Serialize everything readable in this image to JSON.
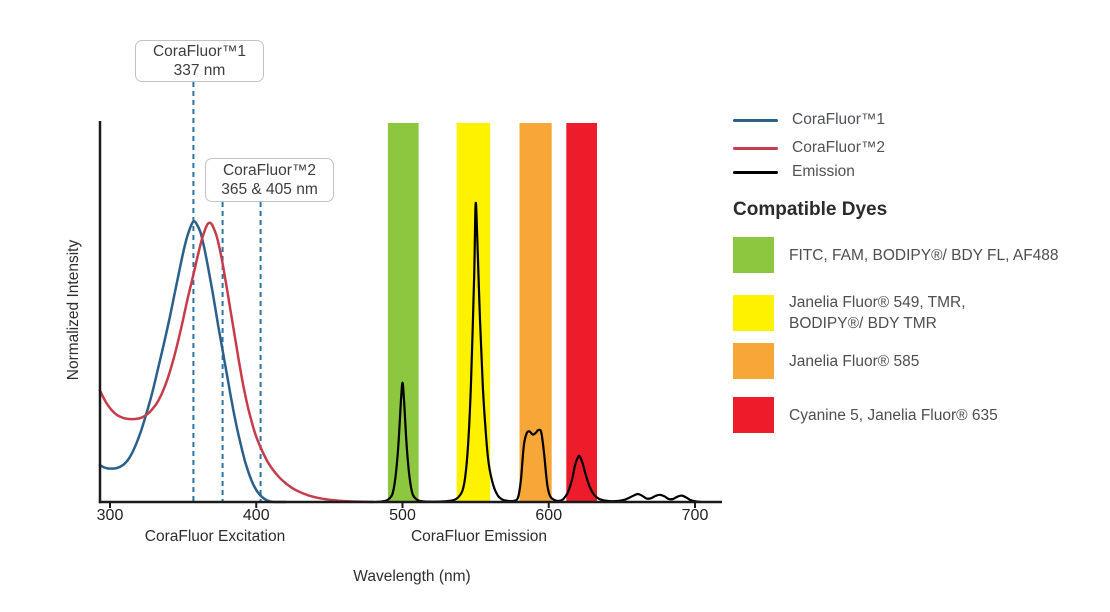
{
  "colors": {
    "corafluor1_blue": "#2B5F8C",
    "corafluor2_red": "#C63C4B",
    "emission_black": "#000000",
    "marker_dash_blue": "#2E74A4",
    "band_green": "#8DC63F",
    "band_yellow": "#FFF200",
    "band_orange": "#F7A738",
    "band_red": "#EC1C2B",
    "axis_black": "#1A1A1A"
  },
  "axes": {
    "x_label": "Wavelength (nm)",
    "y_label": "Normalized Intensity",
    "x_ticks": [
      {
        "label": "300",
        "nm": 300
      },
      {
        "label": "400",
        "nm": 400
      },
      {
        "label": "500",
        "nm": 500
      },
      {
        "label": "600",
        "nm": 600
      },
      {
        "label": "700",
        "nm": 700
      }
    ],
    "region_labels": [
      {
        "text": "CoraFluor Excitation",
        "center_nm": 372
      },
      {
        "text": "CoraFluor Emission",
        "center_nm": 552
      }
    ]
  },
  "callouts": [
    {
      "title": "CoraFluor™1",
      "subtitle": "337 nm",
      "lines_nm": [
        357
      ]
    },
    {
      "title": "CoraFluor™2",
      "subtitle": "365 & 405 nm",
      "lines_nm": [
        377,
        403
      ]
    }
  ],
  "legend": {
    "items": [
      {
        "label": "CoraFluor™1",
        "color": "#2B5F8C"
      },
      {
        "label": "CoraFluor™2",
        "color": "#C63C4B"
      },
      {
        "label": "Emission",
        "color": "#000000"
      }
    ]
  },
  "compatible_dyes": {
    "title": "Compatible Dyes",
    "items": [
      {
        "label": "FITC, FAM, BODIPY®/ BDY FL, AF488",
        "color": "#8DC63F"
      },
      {
        "label": "Janelia Fluor® 549, TMR,\nBODIPY®/ BDY TMR",
        "color": "#FFF200"
      },
      {
        "label": "Janelia Fluor® 585",
        "color": "#F7A738"
      },
      {
        "label": "Cyanine 5, Janelia Fluor® 635",
        "color": "#EC1C2B"
      }
    ]
  },
  "chart_data": {
    "type": "line",
    "title": "",
    "xlabel": "Wavelength (nm)",
    "ylabel": "Normalized Intensity",
    "xlim": [
      293,
      717
    ],
    "ylim": [
      0,
      1
    ],
    "grid": false,
    "legend_position": "right",
    "excitation_markers_nm": {
      "CoraFluor™1": [
        337
      ],
      "CoraFluor™2": [
        365,
        405
      ]
    },
    "series": [
      {
        "key": "corafluor1-excitation",
        "name": "CoraFluor™1",
        "color": "#2B5F8C",
        "width": 2.5,
        "points": [
          [
            293,
            0.097
          ],
          [
            297,
            0.09
          ],
          [
            301,
            0.088
          ],
          [
            305,
            0.09
          ],
          [
            309,
            0.098
          ],
          [
            313,
            0.115
          ],
          [
            317,
            0.145
          ],
          [
            321,
            0.185
          ],
          [
            325,
            0.235
          ],
          [
            329,
            0.29
          ],
          [
            333,
            0.355
          ],
          [
            337,
            0.42
          ],
          [
            341,
            0.49
          ],
          [
            345,
            0.565
          ],
          [
            349,
            0.64
          ],
          [
            352,
            0.69
          ],
          [
            355,
            0.725
          ],
          [
            357,
            0.74
          ],
          [
            359,
            0.735
          ],
          [
            362,
            0.71
          ],
          [
            365,
            0.66
          ],
          [
            368,
            0.6
          ],
          [
            371,
            0.535
          ],
          [
            374,
            0.465
          ],
          [
            377,
            0.4
          ],
          [
            380,
            0.335
          ],
          [
            383,
            0.27
          ],
          [
            386,
            0.21
          ],
          [
            389,
            0.158
          ],
          [
            392,
            0.112
          ],
          [
            395,
            0.075
          ],
          [
            398,
            0.046
          ],
          [
            401,
            0.026
          ],
          [
            404,
            0.013
          ],
          [
            407,
            0.005
          ],
          [
            410,
            0.001
          ],
          [
            414,
            0
          ],
          [
            420,
            0
          ]
        ]
      },
      {
        "key": "corafluor2-excitation",
        "name": "CoraFluor™2",
        "color": "#C63C4B",
        "width": 2.5,
        "points": [
          [
            293,
            0.295
          ],
          [
            297,
            0.265
          ],
          [
            301,
            0.243
          ],
          [
            305,
            0.229
          ],
          [
            309,
            0.222
          ],
          [
            313,
            0.219
          ],
          [
            317,
            0.219
          ],
          [
            321,
            0.222
          ],
          [
            325,
            0.23
          ],
          [
            329,
            0.245
          ],
          [
            333,
            0.267
          ],
          [
            337,
            0.3
          ],
          [
            341,
            0.345
          ],
          [
            345,
            0.4
          ],
          [
            349,
            0.465
          ],
          [
            353,
            0.535
          ],
          [
            357,
            0.6
          ],
          [
            360,
            0.65
          ],
          [
            363,
            0.695
          ],
          [
            366,
            0.728
          ],
          [
            368,
            0.737
          ],
          [
            370,
            0.73
          ],
          [
            373,
            0.7
          ],
          [
            376,
            0.65
          ],
          [
            379,
            0.585
          ],
          [
            382,
            0.515
          ],
          [
            385,
            0.445
          ],
          [
            388,
            0.375
          ],
          [
            391,
            0.31
          ],
          [
            394,
            0.255
          ],
          [
            397,
            0.21
          ],
          [
            400,
            0.172
          ],
          [
            404,
            0.135
          ],
          [
            408,
            0.105
          ],
          [
            412,
            0.082
          ],
          [
            416,
            0.064
          ],
          [
            420,
            0.05
          ],
          [
            425,
            0.036
          ],
          [
            430,
            0.026
          ],
          [
            436,
            0.017
          ],
          [
            442,
            0.011
          ],
          [
            448,
            0.007
          ],
          [
            455,
            0.004
          ],
          [
            462,
            0.002
          ],
          [
            470,
            0.001
          ],
          [
            480,
            0
          ]
        ]
      },
      {
        "key": "emission",
        "name": "Emission",
        "color": "#000000",
        "width": 2.2,
        "points": [
          [
            482,
            0
          ],
          [
            487,
            0.002
          ],
          [
            490,
            0.006
          ],
          [
            493,
            0.02
          ],
          [
            495,
            0.06
          ],
          [
            497,
            0.14
          ],
          [
            499,
            0.27
          ],
          [
            500,
            0.315
          ],
          [
            501,
            0.27
          ],
          [
            503,
            0.14
          ],
          [
            505,
            0.06
          ],
          [
            507,
            0.02
          ],
          [
            510,
            0.006
          ],
          [
            513,
            0.002
          ],
          [
            518,
            0.001
          ],
          [
            524,
            0.001
          ],
          [
            530,
            0.002
          ],
          [
            535,
            0.005
          ],
          [
            538,
            0.012
          ],
          [
            541,
            0.03
          ],
          [
            543,
            0.07
          ],
          [
            545,
            0.16
          ],
          [
            547,
            0.33
          ],
          [
            549,
            0.6
          ],
          [
            550,
            0.785
          ],
          [
            551,
            0.71
          ],
          [
            553,
            0.48
          ],
          [
            555,
            0.3
          ],
          [
            557,
            0.18
          ],
          [
            559,
            0.1
          ],
          [
            562,
            0.045
          ],
          [
            565,
            0.018
          ],
          [
            568,
            0.007
          ],
          [
            572,
            0.003
          ],
          [
            576,
            0.003
          ],
          [
            579,
            0.012
          ],
          [
            581,
            0.06
          ],
          [
            583,
            0.15
          ],
          [
            585,
            0.182
          ],
          [
            587,
            0.186
          ],
          [
            589,
            0.178
          ],
          [
            591,
            0.182
          ],
          [
            593,
            0.19
          ],
          [
            595,
            0.182
          ],
          [
            597,
            0.12
          ],
          [
            599,
            0.045
          ],
          [
            601,
            0.015
          ],
          [
            604,
            0.005
          ],
          [
            607,
            0.003
          ],
          [
            610,
            0.008
          ],
          [
            613,
            0.025
          ],
          [
            616,
            0.06
          ],
          [
            618,
            0.098
          ],
          [
            620,
            0.118
          ],
          [
            621,
            0.121
          ],
          [
            623,
            0.104
          ],
          [
            625,
            0.076
          ],
          [
            628,
            0.04
          ],
          [
            631,
            0.019
          ],
          [
            634,
            0.009
          ],
          [
            638,
            0.004
          ],
          [
            643,
            0.002
          ],
          [
            648,
            0.003
          ],
          [
            652,
            0.006
          ],
          [
            655,
            0.011
          ],
          [
            658,
            0.017
          ],
          [
            661,
            0.021
          ],
          [
            664,
            0.016
          ],
          [
            667,
            0.009
          ],
          [
            670,
            0.01
          ],
          [
            673,
            0.016
          ],
          [
            676,
            0.019
          ],
          [
            679,
            0.015
          ],
          [
            682,
            0.008
          ],
          [
            685,
            0.008
          ],
          [
            688,
            0.014
          ],
          [
            691,
            0.017
          ],
          [
            694,
            0.012
          ],
          [
            697,
            0.005
          ],
          [
            700,
            0.002
          ],
          [
            704,
            0
          ]
        ]
      }
    ],
    "bands": [
      {
        "key": "green",
        "name": "FITC, FAM, BODIPY®/ BDY FL, AF488",
        "color": "#8DC63F",
        "x_range": [
          490,
          511
        ]
      },
      {
        "key": "yellow",
        "name": "Janelia Fluor® 549, TMR, BODIPY®/ BDY TMR",
        "color": "#FFF200",
        "x_range": [
          537,
          560
        ]
      },
      {
        "key": "orange",
        "name": "Janelia Fluor® 585",
        "color": "#F7A738",
        "x_range": [
          580,
          602
        ]
      },
      {
        "key": "red",
        "name": "Cyanine 5, Janelia Fluor® 635",
        "color": "#EC1C2B",
        "x_range": [
          612,
          633
        ]
      }
    ]
  }
}
